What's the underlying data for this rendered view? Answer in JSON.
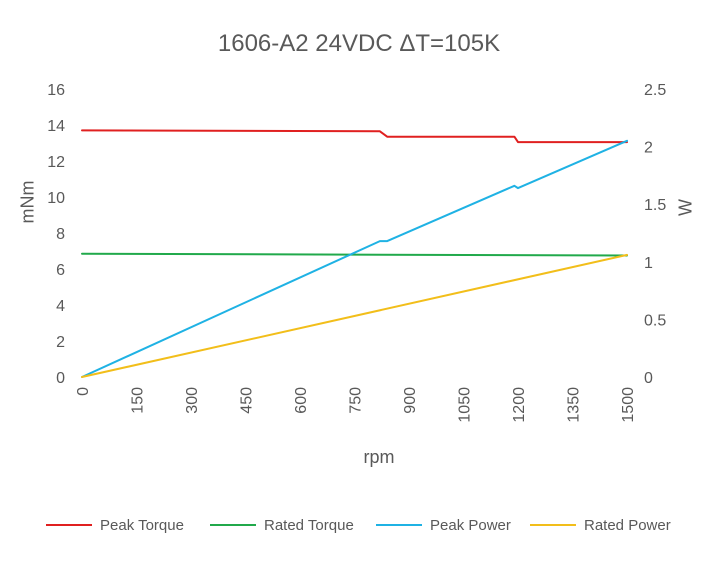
{
  "chart_data": {
    "type": "line",
    "title": "1606-A2 24VDC ΔT=105K",
    "xlabel": "rpm",
    "ylabel": "mNm",
    "y2label": "W",
    "xlim": [
      0,
      1500
    ],
    "ylim": [
      0,
      16
    ],
    "y2lim": [
      0,
      2.5
    ],
    "x_ticks": [
      "0",
      "150",
      "300",
      "450",
      "600",
      "750",
      "900",
      "1050",
      "1200",
      "1350",
      "1500"
    ],
    "y_ticks": [
      "0",
      "2",
      "4",
      "6",
      "8",
      "10",
      "12",
      "14",
      "16"
    ],
    "y2_ticks": [
      "0",
      "0.5",
      "1",
      "1.5",
      "2",
      "2.5"
    ],
    "grid": false,
    "legend_position": "bottom",
    "series": [
      {
        "name": "Peak Torque",
        "axis": "left",
        "color": "#E02020",
        "x": [
          0,
          820,
          840,
          1190,
          1200,
          1500
        ],
        "y": [
          13.7,
          13.65,
          13.35,
          13.35,
          13.05,
          13.05
        ]
      },
      {
        "name": "Rated Torque",
        "axis": "left",
        "color": "#21A94B",
        "x": [
          0,
          1500
        ],
        "y": [
          6.85,
          6.75
        ]
      },
      {
        "name": "Peak Power",
        "axis": "right",
        "color": "#1FB2E4",
        "x": [
          0,
          820,
          840,
          1190,
          1200,
          1500
        ],
        "y": [
          0,
          1.18,
          1.18,
          1.66,
          1.64,
          2.05
        ]
      },
      {
        "name": "Rated Power",
        "axis": "right",
        "color": "#F2BE1A",
        "x": [
          0,
          1500
        ],
        "y": [
          0,
          1.06
        ]
      }
    ]
  }
}
